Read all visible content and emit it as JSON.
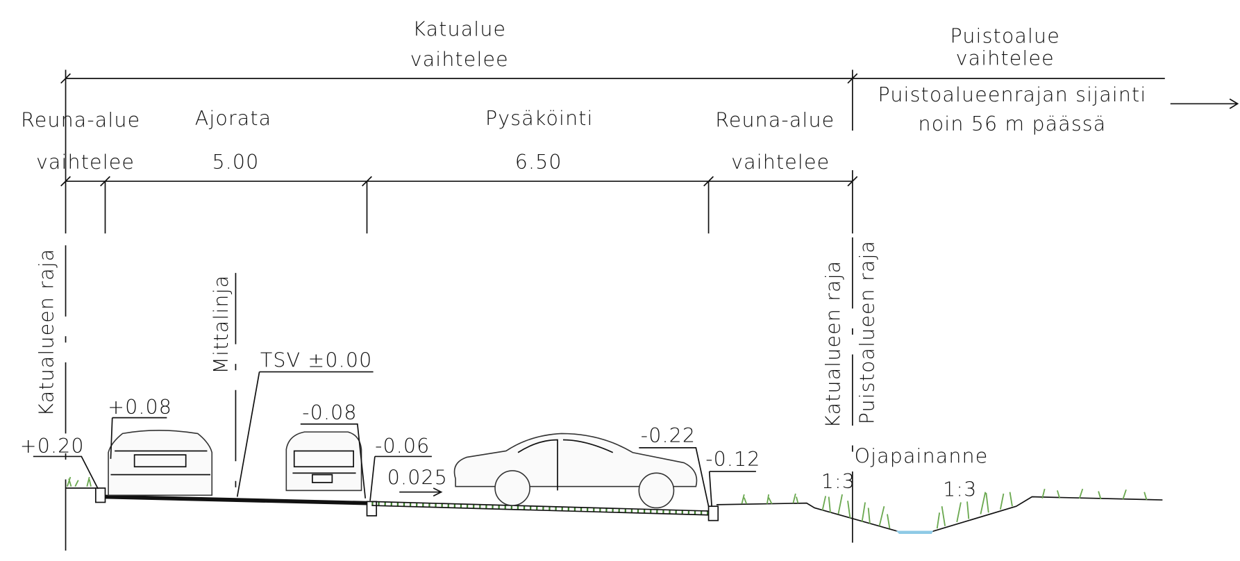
{
  "zones": [
    {
      "name": "Katualue",
      "width": "vaihtelee"
    },
    {
      "name": "Puistoalue",
      "width": "vaihtelee"
    }
  ],
  "puisto_note": [
    "Puistoalueenrajan sijainti",
    "noin 56 m päässä"
  ],
  "sections": [
    {
      "name": "Reuna-alue",
      "width": "vaihtelee"
    },
    {
      "name": "Ajorata",
      "width": "5.00"
    },
    {
      "name": "Pysäköinti",
      "width": "6.50"
    },
    {
      "name": "Reuna-alue",
      "width": "vaihtelee"
    }
  ],
  "boundaries": [
    "Katualueen raja",
    "Mittalinja",
    "Katualueen raja",
    "Puistoalueen raja"
  ],
  "levels": [
    "+0.20",
    "+0.08",
    "TSV ±0.00",
    "-0.08",
    "-0.06",
    "-0.22",
    "-0.12"
  ],
  "slope": "0.025",
  "ditch": "Ojapainanne",
  "ratios": [
    "1:3",
    "1:3"
  ]
}
